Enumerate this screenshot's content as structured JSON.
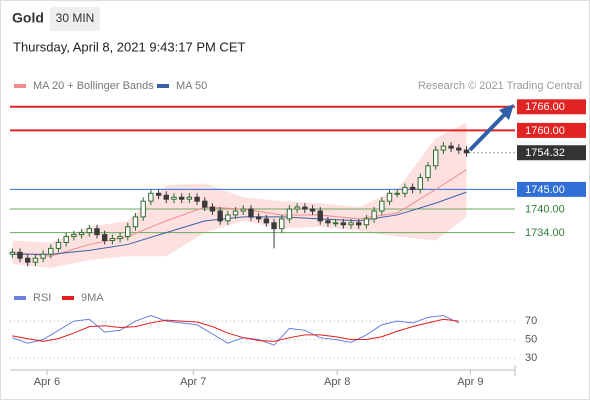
{
  "header": {
    "title": "Gold",
    "interval": "30 MIN",
    "date": "Thursday, April 8, 2021 9:43:17 PM CET"
  },
  "chart_data": {
    "type": "candlestick",
    "attribution": "Research © 2021 Trading Central",
    "open": [
      1728.5,
      1729,
      1727.5,
      1726.5,
      1727.5,
      1728.5,
      1730,
      1731.5,
      1733,
      1733.5,
      1734,
      1735,
      1733.5,
      1732,
      1732.5,
      1733,
      1735.5,
      1738,
      1742,
      1744,
      1743.5,
      1742.5,
      1743,
      1742.5,
      1743,
      1742,
      1740.5,
      1739.5,
      1737,
      1738.5,
      1739.5,
      1740,
      1738,
      1737.5,
      1736.5,
      1735,
      1737.5,
      1740,
      1740.5,
      1740,
      1739.5,
      1737,
      1736.5,
      1736.5,
      1736,
      1736.5,
      1736,
      1737.5,
      1739.5,
      1742,
      1744,
      1744,
      1745.5,
      1745,
      1748,
      1751,
      1755,
      1756,
      1755.5,
      1755
    ],
    "high": [
      1730,
      1730,
      1728.5,
      1728.5,
      1729.5,
      1731,
      1732.5,
      1734,
      1734.5,
      1735,
      1736,
      1736,
      1734.5,
      1733.5,
      1734,
      1736.5,
      1739,
      1743,
      1745,
      1745,
      1744.5,
      1744,
      1744,
      1744,
      1744,
      1743,
      1741.5,
      1740.5,
      1739.5,
      1740.5,
      1741,
      1741,
      1739,
      1738.5,
      1737.5,
      1738.5,
      1741,
      1741.5,
      1741.5,
      1741,
      1740.5,
      1738,
      1737.5,
      1737.5,
      1737.5,
      1737.5,
      1738.5,
      1740.5,
      1743,
      1745,
      1745,
      1746.5,
      1746.5,
      1749,
      1752,
      1756,
      1757,
      1757,
      1756.5,
      1756
    ],
    "low": [
      1727.5,
      1726.5,
      1725.5,
      1725.5,
      1726.5,
      1727.5,
      1729,
      1730.5,
      1732,
      1732.5,
      1733,
      1732.5,
      1731,
      1731,
      1731.5,
      1732,
      1734.5,
      1737,
      1741,
      1742.5,
      1741.5,
      1741.5,
      1741.5,
      1741.5,
      1741,
      1739.5,
      1738.5,
      1736,
      1736,
      1737.5,
      1738.5,
      1737,
      1736.5,
      1735.5,
      1730,
      1734,
      1736.5,
      1739,
      1739,
      1738.5,
      1736,
      1735.5,
      1735.5,
      1735,
      1735,
      1735,
      1735,
      1736.5,
      1738.5,
      1741,
      1743,
      1743,
      1744,
      1744,
      1747,
      1750,
      1754,
      1754.5,
      1754,
      1753.3
    ],
    "close": [
      1729,
      1727.5,
      1726.5,
      1727.5,
      1728.5,
      1730,
      1731.5,
      1733,
      1733.5,
      1734,
      1735,
      1733.5,
      1732,
      1732.5,
      1733,
      1735.5,
      1738,
      1742,
      1744,
      1743.5,
      1742.5,
      1743,
      1742.5,
      1743,
      1742,
      1740.5,
      1739.5,
      1737,
      1738.5,
      1739.5,
      1740,
      1738,
      1737.5,
      1736.5,
      1735,
      1737.5,
      1740,
      1740.5,
      1740,
      1739.5,
      1737,
      1736.5,
      1736.5,
      1736,
      1736.5,
      1736,
      1737.5,
      1739.5,
      1742,
      1744,
      1744,
      1745.5,
      1745,
      1748,
      1751,
      1755,
      1756,
      1755.5,
      1755,
      1754.3
    ],
    "up_color": "#2f6b2f",
    "down_color": "#3a3a3a",
    "overlays": [
      {
        "name": "MA 20 + Bollinger Bands",
        "color": "#f08c8c",
        "band_color": "#fde0e0",
        "x": [
          0,
          5,
          10,
          15,
          20,
          25,
          30,
          35,
          40,
          45,
          50,
          55,
          59
        ],
        "values": [
          1729,
          1728,
          1731,
          1733,
          1737,
          1740.5,
          1740,
          1738.5,
          1738.5,
          1737.5,
          1739,
          1745,
          1750
        ],
        "upper": [
          1732,
          1731.5,
          1735.5,
          1737,
          1746,
          1746.5,
          1743,
          1742,
          1741.5,
          1740.5,
          1745,
          1758,
          1762
        ],
        "lower": [
          1726,
          1725,
          1727,
          1728,
          1728,
          1734,
          1737,
          1735,
          1735.5,
          1734.5,
          1733,
          1732,
          1738
        ]
      },
      {
        "name": "MA 50",
        "color": "#3b5fa8",
        "x": [
          0,
          5,
          10,
          15,
          20,
          25,
          30,
          35,
          40,
          45,
          50,
          55,
          59
        ],
        "values": [
          1728.5,
          1728.5,
          1729.5,
          1731,
          1734,
          1737,
          1738,
          1738,
          1737.5,
          1737,
          1738.5,
          1741.5,
          1744.3
        ]
      }
    ],
    "levels": [
      {
        "value": 1766,
        "label": "1766.00",
        "color": "#e02424",
        "boxed": true
      },
      {
        "value": 1760,
        "label": "1760.00",
        "color": "#e02424",
        "boxed": true
      },
      {
        "value": 1745,
        "label": "1745.00",
        "color": "#2f6fd6",
        "boxed": true
      },
      {
        "value": 1740,
        "label": "1740.00",
        "color": "#6aaa5f",
        "boxed": false
      },
      {
        "value": 1734,
        "label": "1734.00",
        "color": "#6aaa5f",
        "boxed": false
      }
    ],
    "last": {
      "value": 1754.32,
      "label": "1754.32",
      "color": "#333333"
    },
    "xlim": [
      -0.3,
      65.3
    ],
    "xticks": [
      {
        "value": 4.5,
        "label": "Apr 6"
      },
      {
        "value": 23.5,
        "label": "Apr 7"
      },
      {
        "value": 42.2,
        "label": "Apr 8"
      },
      {
        "value": 59.5,
        "label": "Apr 9"
      }
    ],
    "ylim": [
      1724.5,
      1769
    ],
    "rsi": {
      "x": [
        0,
        2,
        4,
        6,
        8,
        10,
        12,
        14,
        16,
        18,
        20,
        22,
        24,
        26,
        28,
        30,
        32,
        34,
        36,
        38,
        40,
        42,
        44,
        46,
        48,
        50,
        52,
        54,
        56,
        58
      ],
      "ylim": [
        17,
        82
      ],
      "yticks": [
        30,
        50,
        70
      ],
      "series": [
        {
          "name": "RSI",
          "color": "#6b7fe0",
          "values": [
            52,
            46,
            50,
            60,
            70,
            72,
            58,
            60,
            70,
            76,
            70,
            68,
            66,
            56,
            46,
            52,
            50,
            44,
            62,
            60,
            52,
            50,
            47,
            55,
            66,
            70,
            68,
            74,
            76,
            68
          ]
        },
        {
          "name": "9MA",
          "color": "#e02020",
          "values": [
            54,
            51,
            48,
            51,
            57,
            64,
            65,
            63,
            64,
            68,
            71,
            70,
            69,
            64,
            57,
            52,
            49,
            48,
            52,
            55,
            55,
            53,
            50,
            50,
            53,
            59,
            64,
            68,
            72,
            70
          ]
        }
      ]
    }
  }
}
